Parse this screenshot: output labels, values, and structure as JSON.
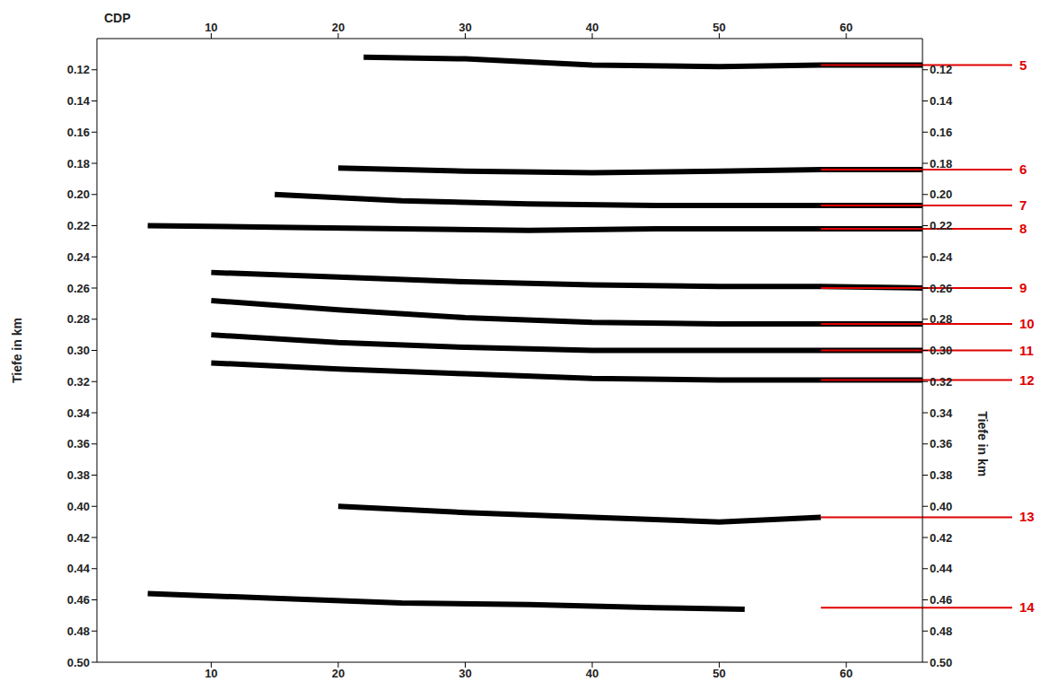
{
  "chart_data": {
    "type": "line",
    "x_label": "CDP",
    "y_label": "Tiefe in km",
    "y2_label": "Tiefe in km",
    "xlim": [
      1,
      66
    ],
    "xticks": [
      10,
      20,
      30,
      40,
      50,
      60
    ],
    "ylim": [
      0.1,
      0.5
    ],
    "yticks": [
      {
        "value": 0.12,
        "label": "0.12"
      },
      {
        "value": 0.14,
        "label": "0.14"
      },
      {
        "value": 0.16,
        "label": "0.16"
      },
      {
        "value": 0.18,
        "label": "0.18"
      },
      {
        "value": 0.2,
        "label": "0.20"
      },
      {
        "value": 0.22,
        "label": "0.22"
      },
      {
        "value": 0.24,
        "label": "0.24"
      },
      {
        "value": 0.26,
        "label": "0.26"
      },
      {
        "value": 0.28,
        "label": "0.28"
      },
      {
        "value": 0.3,
        "label": "0.30"
      },
      {
        "value": 0.32,
        "label": "0.32"
      },
      {
        "value": 0.34,
        "label": "0.34"
      },
      {
        "value": 0.36,
        "label": "0.36"
      },
      {
        "value": 0.38,
        "label": "0.38"
      },
      {
        "value": 0.4,
        "label": "0.40"
      },
      {
        "value": 0.42,
        "label": "0.42"
      },
      {
        "value": 0.44,
        "label": "0.44"
      },
      {
        "value": 0.46,
        "label": "0.46"
      },
      {
        "value": 0.48,
        "label": "0.48"
      },
      {
        "value": 0.5,
        "label": "0.50"
      }
    ],
    "y2lim": [
      0.1,
      0.5
    ],
    "y2ticks": [
      {
        "value": 0.12,
        "label": "0.12"
      },
      {
        "value": 0.14,
        "label": "0.14"
      },
      {
        "value": 0.16,
        "label": "0.16"
      },
      {
        "value": 0.18,
        "label": "0.18"
      },
      {
        "value": 0.2,
        "label": "0.20"
      },
      {
        "value": 0.22,
        "label": "0.22"
      },
      {
        "value": 0.24,
        "label": "0.24"
      },
      {
        "value": 0.26,
        "label": "0.26"
      },
      {
        "value": 0.28,
        "label": "0.28"
      },
      {
        "value": 0.3,
        "label": "0.30"
      },
      {
        "value": 0.32,
        "label": "0.32"
      },
      {
        "value": 0.34,
        "label": "0.34"
      },
      {
        "value": 0.36,
        "label": "0.36"
      },
      {
        "value": 0.38,
        "label": "0.38"
      },
      {
        "value": 0.4,
        "label": "0.40"
      },
      {
        "value": 0.42,
        "label": "0.42"
      },
      {
        "value": 0.44,
        "label": "0.44"
      },
      {
        "value": 0.46,
        "label": "0.46"
      },
      {
        "value": 0.48,
        "label": "0.48"
      },
      {
        "value": 0.5,
        "label": "0.50"
      }
    ],
    "grid": false,
    "series": [
      {
        "name": "5",
        "color": "#000000",
        "x": [
          22,
          30,
          40,
          50,
          58,
          66
        ],
        "values": [
          0.112,
          0.113,
          0.117,
          0.118,
          0.117,
          0.117
        ]
      },
      {
        "name": "6",
        "color": "#000000",
        "x": [
          20,
          30,
          40,
          50,
          58,
          66
        ],
        "values": [
          0.183,
          0.185,
          0.186,
          0.185,
          0.184,
          0.184
        ]
      },
      {
        "name": "7",
        "color": "#000000",
        "x": [
          15,
          25,
          35,
          45,
          55,
          66
        ],
        "values": [
          0.2,
          0.204,
          0.206,
          0.207,
          0.207,
          0.207
        ]
      },
      {
        "name": "8",
        "color": "#000000",
        "x": [
          5,
          15,
          25,
          35,
          45,
          55,
          66
        ],
        "values": [
          0.22,
          0.221,
          0.222,
          0.223,
          0.222,
          0.222,
          0.222
        ]
      },
      {
        "name": "9",
        "color": "#000000",
        "x": [
          10,
          20,
          30,
          40,
          50,
          58,
          66
        ],
        "values": [
          0.25,
          0.253,
          0.256,
          0.258,
          0.259,
          0.259,
          0.26
        ]
      },
      {
        "name": "10",
        "color": "#000000",
        "x": [
          10,
          20,
          30,
          40,
          50,
          58,
          66
        ],
        "values": [
          0.268,
          0.274,
          0.279,
          0.282,
          0.283,
          0.283,
          0.283
        ]
      },
      {
        "name": "11",
        "color": "#000000",
        "x": [
          10,
          20,
          30,
          40,
          50,
          58,
          66
        ],
        "values": [
          0.29,
          0.295,
          0.298,
          0.3,
          0.3,
          0.3,
          0.3
        ]
      },
      {
        "name": "12",
        "color": "#000000",
        "x": [
          10,
          20,
          30,
          40,
          50,
          58,
          66
        ],
        "values": [
          0.308,
          0.312,
          0.315,
          0.318,
          0.319,
          0.319,
          0.319
        ]
      },
      {
        "name": "13",
        "color": "#000000",
        "x": [
          20,
          30,
          40,
          50,
          58
        ],
        "values": [
          0.4,
          0.404,
          0.407,
          0.41,
          0.407
        ]
      },
      {
        "name": "14",
        "color": "#000000",
        "x": [
          5,
          15,
          25,
          35,
          45,
          52
        ],
        "values": [
          0.456,
          0.459,
          0.462,
          0.463,
          0.465,
          0.466
        ]
      }
    ],
    "annotations": [
      {
        "text": "5",
        "y": 0.117,
        "x": [
          58,
          66
        ],
        "color": "#e00000"
      },
      {
        "text": "6",
        "y": 0.184,
        "x": [
          58,
          66
        ],
        "color": "#e00000"
      },
      {
        "text": "7",
        "y": 0.207,
        "x": [
          58,
          66
        ],
        "color": "#e00000"
      },
      {
        "text": "8",
        "y": 0.222,
        "x": [
          58,
          66
        ],
        "color": "#e00000"
      },
      {
        "text": "9",
        "y": 0.26,
        "x": [
          58,
          66
        ],
        "color": "#e00000"
      },
      {
        "text": "10",
        "y": 0.283,
        "x": [
          58,
          66
        ],
        "color": "#e00000"
      },
      {
        "text": "11",
        "y": 0.3,
        "x": [
          58,
          66
        ],
        "color": "#e00000"
      },
      {
        "text": "12",
        "y": 0.319,
        "x": [
          58,
          66
        ],
        "color": "#e00000"
      },
      {
        "text": "13",
        "y": 0.407,
        "x": [
          58,
          66
        ],
        "color": "#e00000"
      },
      {
        "text": "14",
        "y": 0.465,
        "x": [
          58,
          66
        ],
        "color": "#e00000"
      }
    ]
  }
}
